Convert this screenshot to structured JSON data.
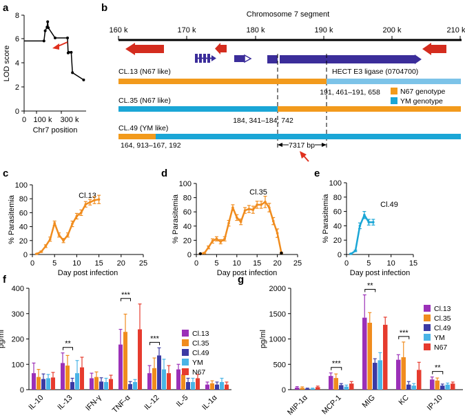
{
  "panels": {
    "a": "a",
    "b": "b",
    "c": "c",
    "d": "d",
    "e": "e",
    "f": "f",
    "g": "g"
  },
  "colors": {
    "cl13": "#9b30b8",
    "cl35": "#f08c1e",
    "cl49": "#3b3aa4",
    "ym": "#4ab4e6",
    "n67": "#e63b2e",
    "n67_genotype": "#f29a1c",
    "ym_genotype": "#1aa6d6",
    "gene_red": "#d42c1e",
    "gene_blue": "#3b2d9a"
  },
  "panel_a": {
    "ylabel": "LOD score",
    "xlabel": "Chr7 position",
    "yticks": [
      "0",
      "2",
      "4",
      "6",
      "8"
    ],
    "xticks": [
      "0",
      "100 k",
      "300 k"
    ]
  },
  "panel_b": {
    "title": "Chromosome 7 segment",
    "ticks": [
      "160 k",
      "170 k",
      "180 k",
      "190 k",
      "200 k",
      "210 k"
    ],
    "gene_label": "HECT E3 ligase (0704700)",
    "clones": [
      {
        "name": "CL.13 (N67 like)",
        "coords": "191, 461–191, 658"
      },
      {
        "name": "CL.35 (N67 like)",
        "coords": "184, 341–184, 742"
      },
      {
        "name": "CL.49 (YM like)",
        "coords": "164, 913–167, 192"
      }
    ],
    "interval": "7317 bp",
    "legend": [
      "N67 genotype",
      "YM genotype"
    ]
  },
  "chart_data": [
    {
      "panel": "a",
      "type": "line",
      "title": "",
      "xlabel": "Chr7 position",
      "ylabel": "LOD score",
      "xlim": [
        0,
        500000
      ],
      "ylim": [
        0,
        8
      ],
      "x": [
        0,
        160000,
        170000,
        185000,
        190000,
        195000,
        250000,
        350000,
        355000,
        360000,
        380000,
        390000,
        480000
      ],
      "y": [
        5.85,
        5.85,
        6.7,
        7.0,
        7.45,
        6.95,
        6.1,
        6.1,
        4.85,
        4.9,
        4.9,
        3.2,
        2.6
      ]
    },
    {
      "panel": "c",
      "type": "line",
      "title": "Cl.13",
      "xlabel": "Day post infection",
      "ylabel": "% Parasitemia",
      "xlim": [
        0,
        25
      ],
      "ylim": [
        0,
        100
      ],
      "xticks": [
        "0",
        "5",
        "10",
        "15",
        "20",
        "25"
      ],
      "yticks": [
        "0",
        "20",
        "40",
        "60",
        "80",
        "100"
      ],
      "x": [
        1,
        2,
        3,
        4,
        5,
        6,
        7,
        8,
        9,
        10,
        11,
        12,
        13,
        14,
        15
      ],
      "y": [
        1,
        4,
        12,
        22,
        45,
        28,
        20,
        28,
        44,
        55,
        60,
        72,
        75,
        78,
        79
      ],
      "err": [
        0.5,
        1,
        2,
        3,
        3,
        3,
        3,
        3,
        4,
        4,
        4,
        4,
        4,
        5,
        6
      ]
    },
    {
      "panel": "d",
      "type": "line",
      "title": "Cl.35",
      "xlabel": "Day post infection",
      "ylabel": "% Parasitemia",
      "xlim": [
        0,
        25
      ],
      "ylim": [
        0,
        100
      ],
      "xticks": [
        "0",
        "5",
        "10",
        "15",
        "20",
        "25"
      ],
      "yticks": [
        "0",
        "20",
        "40",
        "60",
        "80",
        "100"
      ],
      "x": [
        1,
        2,
        3,
        4,
        5,
        6,
        7,
        8,
        9,
        10,
        11,
        12,
        13,
        14,
        15,
        16,
        17,
        18,
        19,
        20,
        21
      ],
      "y": [
        1,
        2,
        10,
        19,
        22,
        18,
        22,
        44,
        66,
        52,
        46,
        62,
        64,
        63,
        70,
        70,
        74,
        66,
        47,
        30,
        2
      ],
      "err": [
        0.5,
        1,
        2,
        3,
        3,
        3,
        3,
        4,
        4,
        4,
        4,
        4,
        5,
        5,
        5,
        5,
        8,
        6,
        5,
        6,
        1
      ]
    },
    {
      "panel": "e",
      "type": "line",
      "title": "Cl.49",
      "xlabel": "Day post infection",
      "ylabel": "% Parasitemia",
      "xlim": [
        0,
        15
      ],
      "ylim": [
        0,
        100
      ],
      "xticks": [
        "0",
        "5",
        "10",
        "15"
      ],
      "yticks": [
        "0",
        "20",
        "40",
        "60",
        "80",
        "100"
      ],
      "x": [
        1,
        2,
        3,
        4,
        5,
        6
      ],
      "y": [
        1,
        5,
        40,
        55,
        45,
        45
      ],
      "err": [
        0.5,
        1,
        4,
        5,
        4,
        4
      ]
    },
    {
      "panel": "f",
      "type": "bar",
      "title": "",
      "xlabel": "",
      "ylabel": "pg/ml",
      "ylim": [
        0,
        400
      ],
      "yticks": [
        "0",
        "100",
        "200",
        "300",
        "400"
      ],
      "categories": [
        "IL-10",
        "IL-13",
        "IFN-γ",
        "TNF-α",
        "IL-12",
        "IL-5",
        "IL-1α"
      ],
      "series": [
        {
          "name": "Cl.13",
          "values": [
            65,
            105,
            45,
            178,
            65,
            80,
            20
          ],
          "err": [
            40,
            40,
            20,
            60,
            30,
            20,
            10
          ]
        },
        {
          "name": "Cl.35",
          "values": [
            50,
            95,
            50,
            228,
            85,
            60,
            25
          ],
          "err": [
            30,
            40,
            20,
            70,
            40,
            20,
            10
          ]
        },
        {
          "name": "Cl.49",
          "values": [
            42,
            30,
            32,
            22,
            135,
            30,
            20
          ],
          "err": [
            20,
            15,
            15,
            10,
            30,
            15,
            10
          ]
        },
        {
          "name": "YM",
          "values": [
            45,
            65,
            30,
            30,
            80,
            30,
            30
          ],
          "err": [
            15,
            50,
            15,
            10,
            40,
            15,
            15
          ]
        },
        {
          "name": "N67",
          "values": [
            48,
            88,
            42,
            238,
            65,
            45,
            20
          ],
          "err": [
            20,
            40,
            15,
            100,
            30,
            15,
            10
          ]
        }
      ],
      "annotations": [
        {
          "category": "IL-13",
          "label": "**"
        },
        {
          "category": "TNF-α",
          "label": "***"
        },
        {
          "category": "IL-12",
          "label": "***"
        }
      ]
    },
    {
      "panel": "g",
      "type": "bar",
      "title": "",
      "xlabel": "",
      "ylabel": "pg/ml",
      "ylim": [
        0,
        2000
      ],
      "yticks": [
        "0",
        "500",
        "1000",
        "1500",
        "2000"
      ],
      "categories": [
        "MIP-1α",
        "MCP-1",
        "MIG",
        "KC",
        "IP-10"
      ],
      "series": [
        {
          "name": "Cl.13",
          "values": [
            40,
            270,
            1420,
            590,
            200
          ],
          "err": [
            20,
            60,
            450,
            100,
            50
          ]
        },
        {
          "name": "Cl.35",
          "values": [
            35,
            230,
            1320,
            640,
            180
          ],
          "err": [
            20,
            80,
            200,
            300,
            50
          ]
        },
        {
          "name": "Cl.49",
          "values": [
            20,
            90,
            530,
            100,
            80
          ],
          "err": [
            10,
            30,
            80,
            60,
            30
          ]
        },
        {
          "name": "YM",
          "values": [
            20,
            60,
            580,
            80,
            100
          ],
          "err": [
            10,
            30,
            150,
            40,
            30
          ]
        },
        {
          "name": "N67",
          "values": [
            50,
            120,
            1280,
            390,
            120
          ],
          "err": [
            20,
            40,
            150,
            150,
            30
          ]
        }
      ],
      "annotations": [
        {
          "category": "MCP-1",
          "label": "***"
        },
        {
          "category": "MIG",
          "label": "**"
        },
        {
          "category": "KC",
          "label": "***"
        },
        {
          "category": "IP-10",
          "label": "**"
        }
      ]
    }
  ],
  "legend_fg": [
    "Cl.13",
    "Cl.35",
    "Cl.49",
    "YM",
    "N67"
  ]
}
